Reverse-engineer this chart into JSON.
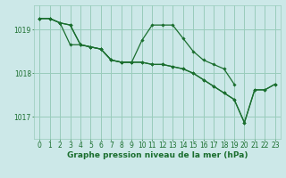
{
  "bg_color": "#cce8e8",
  "grid_color": "#99ccbb",
  "line_color": "#1a6e2e",
  "marker_color": "#1a6e2e",
  "xlabel": "Graphe pression niveau de la mer (hPa)",
  "xlabel_fontsize": 6.5,
  "tick_fontsize": 5.5,
  "ylim": [
    1016.5,
    1019.55
  ],
  "yticks": [
    1017,
    1018,
    1019
  ],
  "xlim": [
    -0.5,
    23.5
  ],
  "xticks": [
    0,
    1,
    2,
    3,
    4,
    5,
    6,
    7,
    8,
    9,
    10,
    11,
    12,
    13,
    14,
    15,
    16,
    17,
    18,
    19,
    20,
    21,
    22,
    23
  ],
  "series": [
    [
      1019.25,
      1019.25,
      1019.15,
      1018.65,
      1018.65,
      1018.6,
      1018.55,
      1018.3,
      1018.25,
      1018.25,
      1018.25,
      1018.2,
      1018.2,
      1018.15,
      1018.1,
      1018.0,
      1017.85,
      1017.7,
      1017.55,
      1017.4,
      1016.87,
      1017.62,
      1017.62,
      1017.75
    ],
    [
      1019.25,
      1019.25,
      1019.15,
      1019.1,
      1018.65,
      1018.6,
      1018.55,
      1018.3,
      1018.25,
      1018.25,
      1018.75,
      1019.1,
      1019.1,
      1019.1,
      1018.8,
      1018.5,
      1018.3,
      1018.2,
      1018.1,
      1017.75,
      null,
      null,
      null,
      null
    ],
    [
      1019.25,
      1019.25,
      1019.15,
      1019.1,
      1018.65,
      1018.6,
      1018.55,
      1018.3,
      1018.25,
      1018.25,
      1018.25,
      1018.2,
      1018.2,
      1018.15,
      1018.1,
      1018.0,
      1017.85,
      1017.7,
      1017.55,
      1017.4,
      1016.87,
      1017.62,
      1017.62,
      1017.75
    ]
  ]
}
